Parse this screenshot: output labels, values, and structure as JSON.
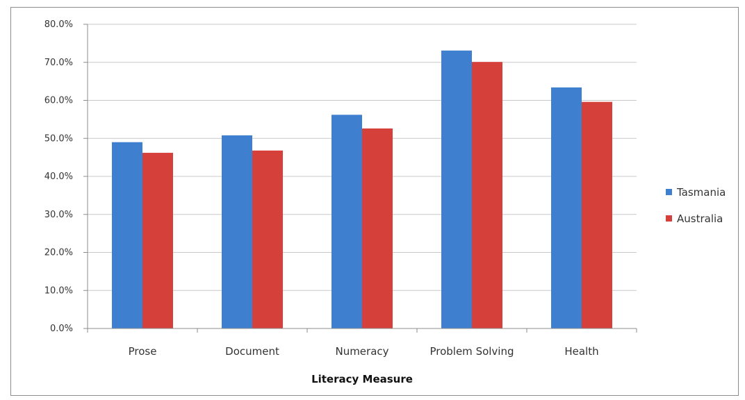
{
  "chart_data": {
    "type": "bar",
    "title": "",
    "xlabel": "Literacy Measure",
    "ylabel": "",
    "categories": [
      "Prose",
      "Document",
      "Numeracy",
      "Problem Solving",
      "Health"
    ],
    "series": [
      {
        "name": "Tasmania",
        "color": "#3f7fcf",
        "values": [
          49.0,
          50.8,
          56.2,
          73.1,
          63.4
        ]
      },
      {
        "name": "Australia",
        "color": "#d6403b",
        "values": [
          46.2,
          46.8,
          52.6,
          70.1,
          59.6
        ]
      }
    ],
    "ylim": [
      0,
      80
    ],
    "yticks": [
      0,
      10,
      20,
      30,
      40,
      50,
      60,
      70,
      80
    ],
    "ytick_labels": [
      "0.0%",
      "10.0%",
      "20.0%",
      "30.0%",
      "40.0%",
      "50.0%",
      "60.0%",
      "70.0%",
      "80.0%"
    ],
    "grid": true,
    "legend_position": "right"
  }
}
